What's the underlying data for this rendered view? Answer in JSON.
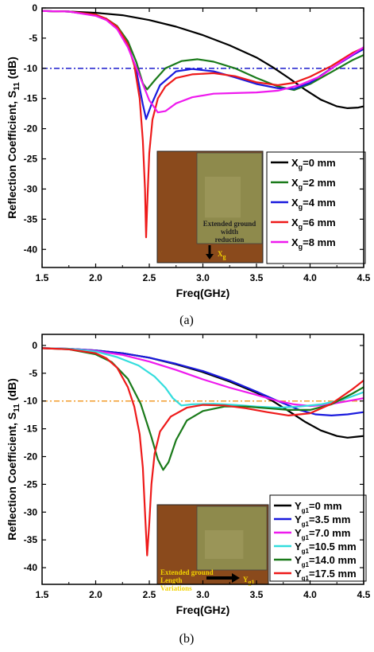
{
  "chart_data": [
    {
      "type": "line",
      "panel_caption": "(a)",
      "xlabel": "Freq(GHz)",
      "ylabel_main": "Reflection Coefficient, S",
      "ylabel_sub": "11",
      "ylabel_unit": " (dB)",
      "xlim": [
        1.5,
        4.5
      ],
      "ylim": [
        -43,
        0
      ],
      "xticks": [
        "1.5",
        "2.0",
        "2.5",
        "3.0",
        "3.5",
        "4.0",
        "4.5"
      ],
      "yticks": [
        "0",
        "-5",
        "-10",
        "-15",
        "-20",
        "-25",
        "-30",
        "-35",
        "-40"
      ],
      "reference_line": -10,
      "reference_color": "#1a1acc",
      "legend_position": "lower-right",
      "inset": {
        "caption": [
          "Extended ground",
          "width",
          "reduction"
        ],
        "arrow_label_main": "X",
        "arrow_label_sub": "g"
      },
      "series": [
        {
          "prefix": "X",
          "sub": "g",
          "suffix": "=0 mm",
          "color": "#000000",
          "x": [
            1.5,
            1.75,
            2.0,
            2.25,
            2.5,
            2.75,
            3.0,
            3.25,
            3.5,
            3.65,
            3.8,
            3.95,
            4.1,
            4.25,
            4.35,
            4.45,
            4.5
          ],
          "y": [
            -0.5,
            -0.6,
            -0.8,
            -1.2,
            -2.0,
            -3.1,
            -4.5,
            -6.2,
            -8.2,
            -9.8,
            -11.6,
            -13.5,
            -15.2,
            -16.3,
            -16.6,
            -16.5,
            -16.3
          ]
        },
        {
          "prefix": "X",
          "sub": "g",
          "suffix": "=2 mm",
          "color": "#1a7a1a",
          "x": [
            1.5,
            1.75,
            2.0,
            2.1,
            2.2,
            2.3,
            2.38,
            2.44,
            2.48,
            2.55,
            2.65,
            2.8,
            2.95,
            3.1,
            3.3,
            3.5,
            3.7,
            3.85,
            4.0,
            4.2,
            4.4,
            4.5
          ],
          "y": [
            -0.5,
            -0.6,
            -1.2,
            -1.8,
            -3.0,
            -5.5,
            -9.0,
            -12.5,
            -13.5,
            -12.0,
            -10.0,
            -8.8,
            -8.5,
            -8.9,
            -10.0,
            -11.6,
            -13.0,
            -13.6,
            -12.6,
            -10.6,
            -8.6,
            -7.8
          ]
        },
        {
          "prefix": "X",
          "sub": "g",
          "suffix": "=4 mm",
          "color": "#1a1add",
          "x": [
            1.5,
            1.75,
            2.0,
            2.1,
            2.2,
            2.3,
            2.38,
            2.44,
            2.47,
            2.52,
            2.6,
            2.75,
            2.9,
            3.1,
            3.3,
            3.5,
            3.7,
            3.85,
            4.0,
            4.2,
            4.4,
            4.5
          ],
          "y": [
            -0.5,
            -0.6,
            -1.2,
            -1.8,
            -3.2,
            -6.0,
            -10.5,
            -16.0,
            -18.4,
            -16.0,
            -12.8,
            -10.5,
            -10.1,
            -10.5,
            -11.5,
            -12.6,
            -13.3,
            -13.4,
            -12.4,
            -10.0,
            -7.8,
            -6.8
          ]
        },
        {
          "prefix": "X",
          "sub": "g",
          "suffix": "=6 mm",
          "color": "#ee1a1a",
          "x": [
            1.5,
            1.75,
            2.0,
            2.1,
            2.2,
            2.3,
            2.36,
            2.41,
            2.44,
            2.46,
            2.47,
            2.48,
            2.5,
            2.53,
            2.58,
            2.65,
            2.75,
            2.9,
            3.1,
            3.3,
            3.5,
            3.7,
            3.85,
            4.0,
            4.2,
            4.4,
            4.5
          ],
          "y": [
            -0.5,
            -0.6,
            -1.1,
            -1.8,
            -3.1,
            -6.0,
            -9.5,
            -15.0,
            -22.0,
            -30.0,
            -38.0,
            -33.0,
            -24.0,
            -18.5,
            -15.0,
            -13.0,
            -11.6,
            -11.0,
            -10.8,
            -11.3,
            -12.3,
            -12.8,
            -12.4,
            -11.4,
            -9.6,
            -7.4,
            -6.6
          ]
        },
        {
          "prefix": "X",
          "sub": "g",
          "suffix": "=8 mm",
          "color": "#ee1aee",
          "x": [
            1.5,
            1.75,
            2.0,
            2.1,
            2.2,
            2.3,
            2.4,
            2.5,
            2.58,
            2.65,
            2.75,
            2.9,
            3.1,
            3.3,
            3.5,
            3.7,
            3.9,
            4.1,
            4.3,
            4.5
          ],
          "y": [
            -0.5,
            -0.6,
            -1.3,
            -2.0,
            -3.5,
            -6.5,
            -10.8,
            -15.3,
            -17.3,
            -17.1,
            -15.8,
            -14.8,
            -14.2,
            -14.1,
            -14.0,
            -13.7,
            -12.8,
            -11.3,
            -8.8,
            -6.5
          ]
        }
      ]
    },
    {
      "type": "line",
      "panel_caption": "(b)",
      "xlabel": "Freq(GHz)",
      "ylabel_main": "Reflection Coefficient, S",
      "ylabel_sub": "11",
      "ylabel_unit": " (dB)",
      "xlim": [
        1.5,
        4.5
      ],
      "ylim": [
        -43,
        2
      ],
      "xticks": [
        "1.5",
        "2.0",
        "2.5",
        "3.0",
        "3.5",
        "4.0",
        "4.5"
      ],
      "yticks": [
        "0",
        "-5",
        "-10",
        "-15",
        "-20",
        "-25",
        "-30",
        "-35",
        "-40"
      ],
      "reference_line": -10,
      "reference_color": "#f29b2a",
      "legend_position": "lower-right",
      "inset": {
        "caption": [
          "Extended ground",
          "Length",
          "Variations"
        ],
        "arrow_label_main": "Y",
        "arrow_label_sub": "g1"
      },
      "series": [
        {
          "prefix": "Y",
          "sub": "g1",
          "suffix": "=0 mm",
          "color": "#000000",
          "x": [
            1.5,
            1.75,
            2.0,
            2.25,
            2.5,
            2.75,
            3.0,
            3.25,
            3.5,
            3.65,
            3.8,
            3.95,
            4.1,
            4.25,
            4.35,
            4.45,
            4.5
          ],
          "y": [
            -0.5,
            -0.6,
            -0.9,
            -1.4,
            -2.2,
            -3.4,
            -4.8,
            -6.5,
            -8.5,
            -10.0,
            -11.8,
            -13.7,
            -15.3,
            -16.3,
            -16.6,
            -16.4,
            -16.3
          ]
        },
        {
          "prefix": "Y",
          "sub": "g1",
          "suffix": "=3.5 mm",
          "color": "#1a1add",
          "x": [
            1.5,
            1.75,
            2.0,
            2.25,
            2.5,
            2.75,
            3.0,
            3.25,
            3.5,
            3.7,
            3.9,
            4.05,
            4.2,
            4.35,
            4.5
          ],
          "y": [
            -0.5,
            -0.6,
            -0.9,
            -1.4,
            -2.2,
            -3.3,
            -4.6,
            -6.3,
            -8.3,
            -10.0,
            -11.6,
            -12.4,
            -12.6,
            -12.4,
            -12.0
          ]
        },
        {
          "prefix": "Y",
          "sub": "g1",
          "suffix": "=7.0 mm",
          "color": "#ee1aee",
          "x": [
            1.5,
            1.75,
            2.0,
            2.25,
            2.5,
            2.75,
            3.0,
            3.25,
            3.5,
            3.7,
            3.85,
            4.0,
            4.15,
            4.3,
            4.5
          ],
          "y": [
            -0.5,
            -0.6,
            -1.0,
            -1.7,
            -2.9,
            -4.4,
            -6.1,
            -7.6,
            -8.9,
            -10.0,
            -10.6,
            -10.9,
            -10.7,
            -10.2,
            -9.5
          ]
        },
        {
          "prefix": "Y",
          "sub": "g1",
          "suffix": "=10.5 mm",
          "color": "#33dddd",
          "x": [
            1.5,
            1.75,
            2.0,
            2.2,
            2.4,
            2.55,
            2.65,
            2.72,
            2.8,
            2.9,
            3.1,
            3.3,
            3.5,
            3.7,
            3.9,
            4.1,
            4.3,
            4.5
          ],
          "y": [
            -0.5,
            -0.6,
            -1.1,
            -2.1,
            -3.6,
            -5.6,
            -7.6,
            -9.5,
            -10.8,
            -10.6,
            -10.5,
            -10.7,
            -11.0,
            -11.2,
            -11.0,
            -10.6,
            -9.8,
            -8.4
          ]
        },
        {
          "prefix": "Y",
          "sub": "g1",
          "suffix": "=14.0 mm",
          "color": "#1a7a1a",
          "x": [
            1.5,
            1.75,
            2.0,
            2.15,
            2.3,
            2.42,
            2.52,
            2.58,
            2.63,
            2.68,
            2.75,
            2.85,
            3.0,
            3.2,
            3.4,
            3.6,
            3.8,
            4.0,
            4.2,
            4.4,
            4.5
          ],
          "y": [
            -0.5,
            -0.7,
            -1.6,
            -3.0,
            -6.0,
            -10.5,
            -16.5,
            -20.5,
            -22.4,
            -21.0,
            -17.0,
            -13.5,
            -11.8,
            -11.0,
            -11.0,
            -11.3,
            -11.6,
            -11.6,
            -10.6,
            -8.6,
            -7.5
          ]
        },
        {
          "prefix": "Y",
          "sub": "g1",
          "suffix": "=17.5 mm",
          "color": "#ee1a1a",
          "x": [
            1.5,
            1.75,
            2.0,
            2.1,
            2.2,
            2.3,
            2.36,
            2.41,
            2.44,
            2.46,
            2.48,
            2.5,
            2.52,
            2.55,
            2.6,
            2.7,
            2.85,
            3.0,
            3.2,
            3.4,
            3.6,
            3.8,
            4.0,
            4.2,
            4.4,
            4.5
          ],
          "y": [
            -0.5,
            -0.7,
            -1.4,
            -2.3,
            -4.0,
            -7.5,
            -11.0,
            -16.0,
            -22.0,
            -30.0,
            -37.8,
            -32.0,
            -25.0,
            -19.5,
            -15.5,
            -12.8,
            -11.2,
            -10.7,
            -10.8,
            -11.3,
            -12.0,
            -12.6,
            -12.2,
            -10.5,
            -7.8,
            -6.3
          ]
        }
      ]
    }
  ]
}
